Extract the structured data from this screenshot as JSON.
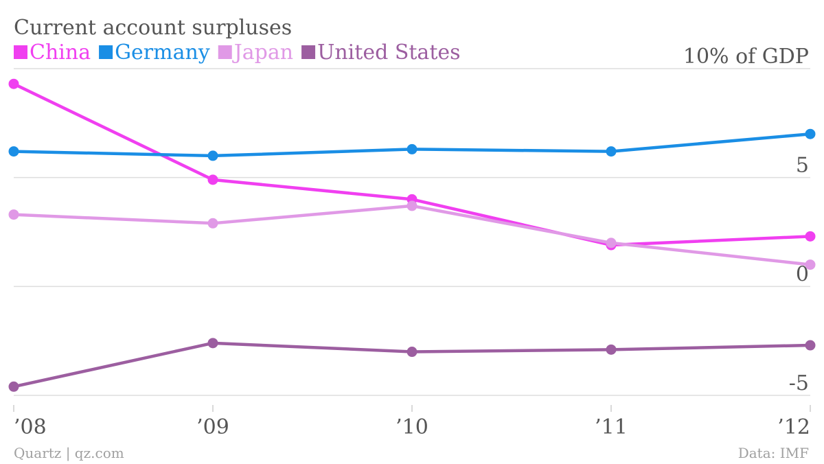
{
  "chart_data": {
    "type": "line",
    "title": "Current account surpluses",
    "categories": [
      "’08",
      "’09",
      "’10",
      "’11",
      "’12"
    ],
    "ylim": [
      -5,
      10
    ],
    "yticks": [
      {
        "value": 10,
        "label": "10% of GDP"
      },
      {
        "value": 5,
        "label": "5"
      },
      {
        "value": 0,
        "label": "0"
      },
      {
        "value": -5,
        "label": "-5"
      }
    ],
    "grid": true,
    "legend": "top-left",
    "series": [
      {
        "name": "China",
        "color": "#f03ff0",
        "values": [
          9.3,
          4.9,
          4.0,
          1.9,
          2.3
        ]
      },
      {
        "name": "Germany",
        "color": "#1a8ee5",
        "values": [
          6.2,
          6.0,
          6.3,
          6.2,
          7.0
        ]
      },
      {
        "name": "Japan",
        "color": "#e099e6",
        "values": [
          3.3,
          2.9,
          3.7,
          2.0,
          1.0
        ]
      },
      {
        "name": "United States",
        "color": "#9c5ea0",
        "values": [
          -4.6,
          -2.6,
          -3.0,
          -2.9,
          -2.7
        ]
      }
    ]
  },
  "footer": {
    "source_left": "Quartz | qz.com",
    "source_right": "Data: IMF"
  }
}
